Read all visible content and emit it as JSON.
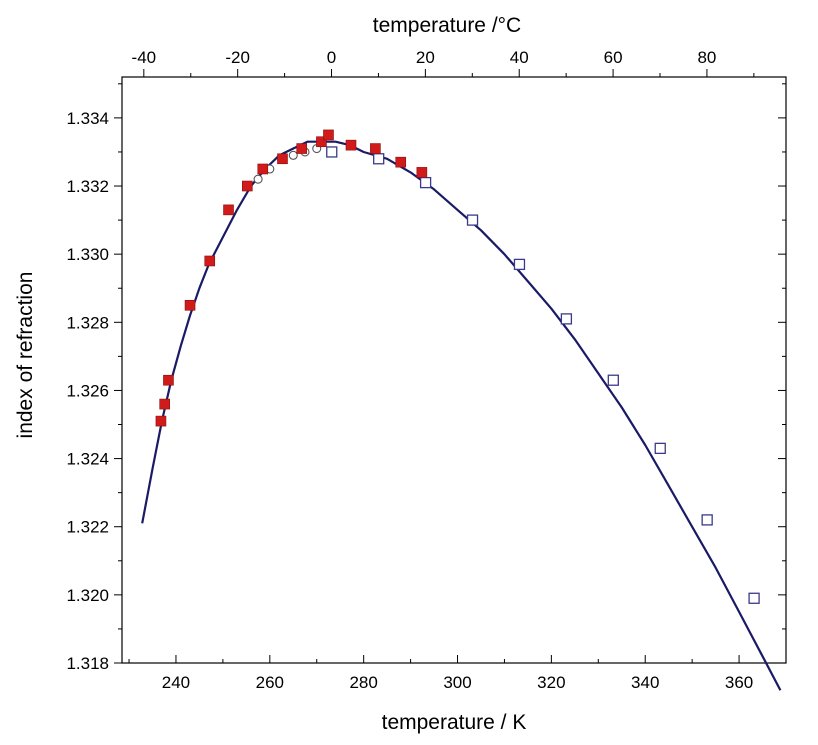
{
  "chart_data": {
    "type": "scatter",
    "title": "",
    "xlabel": "temperature / K",
    "x2label": "temperature /°C",
    "ylabel": "index of refraction",
    "xlim": [
      228.5,
      370
    ],
    "ylim": [
      1.318,
      1.3352
    ],
    "x2_offset": -273.15,
    "grid": false,
    "legend": "none",
    "x_ticks": [
      240,
      260,
      280,
      300,
      320,
      340,
      360
    ],
    "x2_ticks": [
      -40,
      -20,
      0,
      20,
      40,
      60,
      80
    ],
    "y_ticks": [
      1.318,
      1.32,
      1.322,
      1.324,
      1.326,
      1.328,
      1.33,
      1.332,
      1.334
    ],
    "x_tick_labels": [
      "240",
      "260",
      "280",
      "300",
      "320",
      "340",
      "360"
    ],
    "x2_tick_labels": [
      "-40",
      "-20",
      "0",
      "20",
      "40",
      "60",
      "80"
    ],
    "y_tick_labels": [
      "1.318",
      "1.320",
      "1.322",
      "1.324",
      "1.326",
      "1.328",
      "1.330",
      "1.332",
      "1.334"
    ],
    "colors": {
      "fit": "#1a1a66",
      "filled": "#d11a1a",
      "open_square": "#3a3a8a",
      "open_circle": "#555555"
    },
    "series": [
      {
        "marker": "filled-square",
        "x": [
          236.8,
          237.6,
          238.4,
          243.0,
          247.2,
          251.2,
          255.2,
          258.5,
          262.7,
          266.8,
          271.0,
          272.5,
          277.3,
          282.5,
          287.9,
          292.4
        ],
        "values": [
          1.3251,
          1.3256,
          1.3263,
          1.3285,
          1.3298,
          1.3313,
          1.332,
          1.3325,
          1.3328,
          1.3331,
          1.3333,
          1.3335,
          1.3332,
          1.3331,
          1.3327,
          1.3324
        ]
      },
      {
        "marker": "open-square",
        "x": [
          273.2,
          283.2,
          293.2,
          303.2,
          313.2,
          323.2,
          333.2,
          343.2,
          353.2,
          363.2
        ],
        "values": [
          1.333,
          1.3328,
          1.3321,
          1.331,
          1.3297,
          1.3281,
          1.3263,
          1.3243,
          1.3222,
          1.3199
        ]
      },
      {
        "marker": "open-circle",
        "x": [
          257.5,
          260.0,
          262.5,
          265.0,
          267.5,
          270.0
        ],
        "values": [
          1.3322,
          1.3325,
          1.3328,
          1.3329,
          1.333,
          1.3331
        ]
      },
      {
        "marker": "line",
        "x": [
          232.8,
          235,
          237,
          239,
          241,
          243,
          245,
          247,
          250,
          253,
          256,
          259,
          262,
          265,
          268,
          271,
          274,
          277,
          280,
          285,
          290,
          295,
          300,
          305,
          310,
          315,
          320,
          325,
          330,
          335,
          340,
          345,
          350,
          355,
          360,
          365,
          368.8
        ],
        "values": [
          1.3221,
          1.3237,
          1.3251,
          1.3263,
          1.3273,
          1.3282,
          1.329,
          1.3297,
          1.3305,
          1.3313,
          1.332,
          1.3325,
          1.3329,
          1.3331,
          1.3333,
          1.3333,
          1.3333,
          1.3332,
          1.333,
          1.3328,
          1.3324,
          1.3319,
          1.3313,
          1.3307,
          1.33,
          1.3292,
          1.3284,
          1.3275,
          1.3265,
          1.3255,
          1.3244,
          1.3232,
          1.322,
          1.3208,
          1.3195,
          1.3182,
          1.3172
        ]
      }
    ]
  }
}
